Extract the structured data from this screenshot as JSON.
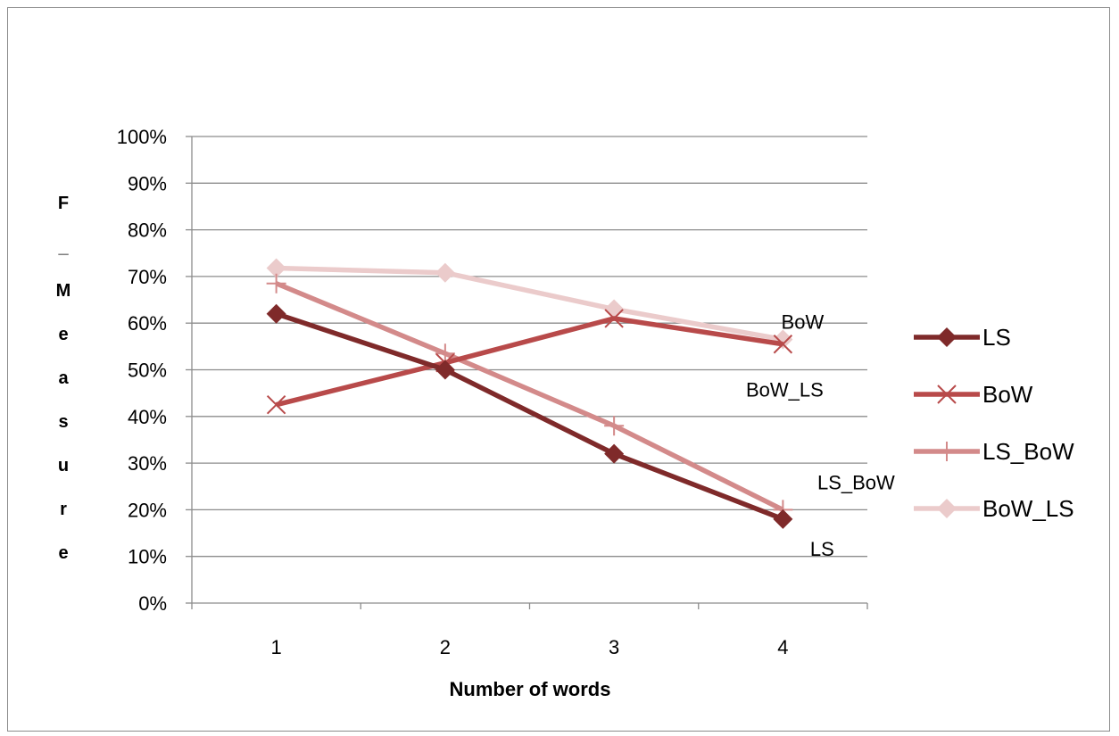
{
  "chart_data": {
    "type": "line",
    "xlabel": "Number of words",
    "ylabel": "F_Measure",
    "categories": [
      "1",
      "2",
      "3",
      "4"
    ],
    "ylim": [
      0,
      100
    ],
    "yticks": [
      "0%",
      "10%",
      "20%",
      "30%",
      "40%",
      "50%",
      "60%",
      "70%",
      "80%",
      "90%",
      "100%"
    ],
    "grid": "horizontal",
    "legend_position": "right",
    "series": [
      {
        "name": "LS",
        "values": [
          62,
          50,
          32,
          18
        ],
        "color": "#7f2a2a",
        "marker": "diamond",
        "label": "LS"
      },
      {
        "name": "BoW",
        "values": [
          42.5,
          51.5,
          61,
          55.5
        ],
        "color": "#b84a4a",
        "marker": "x",
        "label": "BoW"
      },
      {
        "name": "LS_BoW",
        "values": [
          68.5,
          53.5,
          38,
          20
        ],
        "color": "#d38a8a",
        "marker": "plus",
        "label": "LS_BoW"
      },
      {
        "name": "BoW_LS",
        "values": [
          71.8,
          70.8,
          63,
          56.5
        ],
        "color": "#ebcbcb",
        "marker": "diamond",
        "label": "BoW_LS"
      }
    ]
  }
}
